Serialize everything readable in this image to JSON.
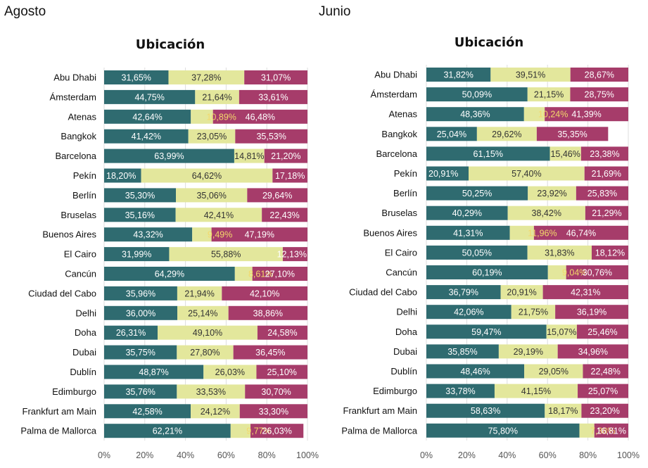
{
  "panels": [
    {
      "label": "Agosto"
    },
    {
      "label": "Junio"
    }
  ],
  "colors": {
    "series1": "#2f6b70",
    "series2": "#e3e79c",
    "series3": "#a63c6a",
    "label_on_dark": "#ffffff",
    "label_highlight": "#f3d96b",
    "label_on_light_green": "#4f8f42",
    "grid": "#dddddd"
  },
  "chart_data": [
    {
      "type": "bar",
      "orientation": "horizontal",
      "stacked": "percent",
      "title": "Ubicación",
      "categories": [
        "Abu Dhabi",
        "Ámsterdam",
        "Atenas",
        "Bangkok",
        "Barcelona",
        "Pekín",
        "Berlín",
        "Bruselas",
        "Buenos Aires",
        "El Cairo",
        "Cancún",
        "Ciudad del Cabo",
        "Delhi",
        "Doha",
        "Dubai",
        "Dublín",
        "Edimburgo",
        "Frankfurt am Main",
        "Palma de Mallorca"
      ],
      "series": [
        {
          "values": [
            31.65,
            44.75,
            42.64,
            41.42,
            63.99,
            18.2,
            35.3,
            35.16,
            43.32,
            31.99,
            64.29,
            35.96,
            36.0,
            26.31,
            35.75,
            48.87,
            35.76,
            42.58,
            62.21
          ]
        },
        {
          "values": [
            37.28,
            21.64,
            10.89,
            23.05,
            14.81,
            64.62,
            35.06,
            42.41,
            9.49,
            55.88,
            8.61,
            21.94,
            25.14,
            49.1,
            27.8,
            26.03,
            33.53,
            24.12,
            9.77
          ]
        },
        {
          "values": [
            31.07,
            33.61,
            46.48,
            35.53,
            21.2,
            17.18,
            29.64,
            22.43,
            47.19,
            12.13,
            27.1,
            42.1,
            38.86,
            24.58,
            36.45,
            25.1,
            30.7,
            33.3,
            26.03
          ]
        }
      ],
      "data_labels": [
        [
          "31,65%",
          "44,75%",
          "42,64%",
          "41,42%",
          "63,99%",
          "18,20%",
          "35,30%",
          "35,16%",
          "43,32%",
          "31,99%",
          "64,29%",
          "35,96%",
          "36,00%",
          "26,31%",
          "35,75%",
          "48,87%",
          "35,76%",
          "42,58%",
          "62,21%"
        ],
        [
          "37,28%",
          "21,64%",
          "10,89%",
          "23,05%",
          "14,81%",
          "64,62%",
          "35,06%",
          "42,41%",
          "9,49%",
          "55,88%",
          "8,61%",
          "21,94%",
          "25,14%",
          "49,10%",
          "27,80%",
          "26,03%",
          "33,53%",
          "24,12%",
          "9,77%"
        ],
        [
          "31,07%",
          "33,61%",
          "46,48%",
          "35,53%",
          "21,20%",
          "17,18%",
          "29,64%",
          "22,43%",
          "47,19%",
          "12,13%",
          "27,10%",
          "42,10%",
          "38,86%",
          "24,58%",
          "36,45%",
          "25,10%",
          "30,70%",
          "33,30%",
          "26,03%"
        ]
      ],
      "xlim": [
        0,
        100
      ],
      "xticks": [
        "0%",
        "20%",
        "40%",
        "60%",
        "80%",
        "100%"
      ],
      "grid": true,
      "legend": "none"
    },
    {
      "type": "bar",
      "orientation": "horizontal",
      "stacked": "percent",
      "title": "Ubicación",
      "categories": [
        "Abu Dhabi",
        "Ámsterdam",
        "Atenas",
        "Bangkok",
        "Barcelona",
        "Pekín",
        "Berlín",
        "Bruselas",
        "Buenos Aires",
        "El Cairo",
        "Cancún",
        "Ciudad del Cabo",
        "Delhi",
        "Doha",
        "Dubai",
        "Dublín",
        "Edimburgo",
        "Frankfurt am Main",
        "Palma de Mallorca"
      ],
      "series": [
        {
          "values": [
            31.82,
            50.09,
            48.36,
            25.04,
            61.15,
            20.91,
            50.25,
            40.29,
            41.31,
            50.05,
            60.19,
            36.79,
            42.06,
            59.47,
            35.85,
            48.46,
            33.78,
            58.63,
            75.8
          ]
        },
        {
          "values": [
            39.51,
            21.15,
            10.24,
            29.62,
            15.46,
            57.4,
            23.92,
            38.42,
            11.96,
            31.83,
            9.04,
            20.91,
            21.75,
            15.07,
            29.19,
            29.05,
            41.15,
            18.17,
            7.38
          ]
        },
        {
          "values": [
            28.67,
            28.75,
            41.39,
            35.35,
            23.38,
            21.69,
            25.83,
            21.29,
            46.74,
            18.12,
            30.76,
            42.31,
            36.19,
            25.46,
            34.96,
            22.48,
            25.07,
            23.2,
            16.81
          ]
        }
      ],
      "data_labels": [
        [
          "31,82%",
          "50,09%",
          "48,36%",
          "25,04%",
          "61,15%",
          "20,91%",
          "50,25%",
          "40,29%",
          "41,31%",
          "50,05%",
          "60,19%",
          "36,79%",
          "42,06%",
          "59,47%",
          "35,85%",
          "48,46%",
          "33,78%",
          "58,63%",
          "75,80%"
        ],
        [
          "39,51%",
          "21,15%",
          "10,24%",
          "29,62%",
          "15,46%",
          "57,40%",
          "23,92%",
          "38,42%",
          "11,96%",
          "31,83%",
          "9,04%",
          "20,91%",
          "21,75%",
          "15,07%",
          "29,19%",
          "29,05%",
          "41,15%",
          "18,17%",
          "7,38%"
        ],
        [
          "28,67%",
          "28,75%",
          "41,39%",
          "35,35%",
          "23,38%",
          "21,69%",
          "25,83%",
          "21,29%",
          "46,74%",
          "18,12%",
          "30,76%",
          "42,31%",
          "36,19%",
          "25,46%",
          "34,96%",
          "22,48%",
          "25,07%",
          "23,20%",
          "16,81%"
        ]
      ],
      "xlim": [
        0,
        100
      ],
      "xticks": [
        "0%",
        "20%",
        "40%",
        "60%",
        "80%",
        "100%"
      ],
      "grid": true,
      "legend": "none"
    }
  ]
}
